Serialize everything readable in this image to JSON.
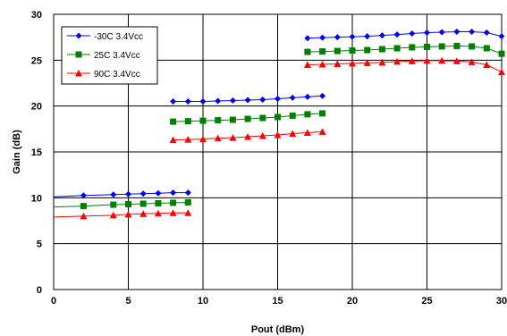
{
  "chart_data": {
    "type": "line",
    "xlabel": "Pout (dBm)",
    "ylabel": "Gain (dB)",
    "xlim": [
      0,
      30
    ],
    "ylim": [
      0,
      30
    ],
    "xticks": [
      "0",
      "5",
      "10",
      "15",
      "20",
      "25",
      "30"
    ],
    "yticks": [
      "0",
      "5",
      "10",
      "15",
      "20",
      "25",
      "30"
    ],
    "grid": true,
    "legend_position": "top-left",
    "series": [
      {
        "name": "-30C 3.4Vcc",
        "color": "#0000ff",
        "marker": "diamond",
        "segments": [
          [
            [
              0,
              10.1
            ],
            [
              2,
              10.25
            ],
            [
              4,
              10.35
            ],
            [
              5,
              10.4
            ],
            [
              6,
              10.45
            ],
            [
              7,
              10.5
            ],
            [
              8,
              10.55
            ],
            [
              9,
              10.55
            ]
          ],
          [
            [
              8,
              20.5
            ],
            [
              9,
              20.5
            ],
            [
              10,
              20.5
            ],
            [
              11,
              20.55
            ],
            [
              12,
              20.6
            ],
            [
              13,
              20.65
            ],
            [
              14,
              20.7
            ],
            [
              15,
              20.8
            ],
            [
              16,
              20.9
            ],
            [
              17,
              21.0
            ],
            [
              18,
              21.1
            ]
          ],
          [
            [
              17,
              27.4
            ],
            [
              18,
              27.45
            ],
            [
              19,
              27.5
            ],
            [
              20,
              27.55
            ],
            [
              21,
              27.6
            ],
            [
              22,
              27.7
            ],
            [
              23,
              27.8
            ],
            [
              24,
              27.9
            ],
            [
              25,
              28.0
            ],
            [
              26,
              28.05
            ],
            [
              27,
              28.1
            ],
            [
              28,
              28.1
            ],
            [
              29,
              28.0
            ],
            [
              30,
              27.6
            ]
          ]
        ]
      },
      {
        "name": "25C 3.4Vcc",
        "color": "#008000",
        "marker": "square",
        "segments": [
          [
            [
              0,
              9.0
            ],
            [
              2,
              9.1
            ],
            [
              4,
              9.25
            ],
            [
              5,
              9.3
            ],
            [
              6,
              9.35
            ],
            [
              7,
              9.4
            ],
            [
              8,
              9.45
            ],
            [
              9,
              9.5
            ]
          ],
          [
            [
              8,
              18.3
            ],
            [
              9,
              18.35
            ],
            [
              10,
              18.4
            ],
            [
              11,
              18.45
            ],
            [
              12,
              18.5
            ],
            [
              13,
              18.6
            ],
            [
              14,
              18.7
            ],
            [
              15,
              18.8
            ],
            [
              16,
              18.95
            ],
            [
              17,
              19.1
            ],
            [
              18,
              19.2
            ]
          ],
          [
            [
              17,
              25.9
            ],
            [
              18,
              25.95
            ],
            [
              19,
              26.0
            ],
            [
              20,
              26.05
            ],
            [
              21,
              26.1
            ],
            [
              22,
              26.2
            ],
            [
              23,
              26.3
            ],
            [
              24,
              26.4
            ],
            [
              25,
              26.45
            ],
            [
              26,
              26.5
            ],
            [
              27,
              26.55
            ],
            [
              28,
              26.5
            ],
            [
              29,
              26.3
            ],
            [
              30,
              25.7
            ]
          ]
        ]
      },
      {
        "name": "90C 3.4Vcc",
        "color": "#ff0000",
        "marker": "triangle",
        "segments": [
          [
            [
              0,
              7.9
            ],
            [
              2,
              8.0
            ],
            [
              4,
              8.1
            ],
            [
              5,
              8.2
            ],
            [
              6,
              8.25
            ],
            [
              7,
              8.3
            ],
            [
              8,
              8.35
            ],
            [
              9,
              8.35
            ]
          ],
          [
            [
              8,
              16.3
            ],
            [
              9,
              16.35
            ],
            [
              10,
              16.4
            ],
            [
              11,
              16.5
            ],
            [
              12,
              16.55
            ],
            [
              13,
              16.65
            ],
            [
              14,
              16.75
            ],
            [
              15,
              16.85
            ],
            [
              16,
              17.0
            ],
            [
              17,
              17.1
            ],
            [
              18,
              17.2
            ]
          ],
          [
            [
              17,
              24.5
            ],
            [
              18,
              24.55
            ],
            [
              19,
              24.6
            ],
            [
              20,
              24.65
            ],
            [
              21,
              24.7
            ],
            [
              22,
              24.75
            ],
            [
              23,
              24.85
            ],
            [
              24,
              24.9
            ],
            [
              25,
              24.95
            ],
            [
              26,
              24.95
            ],
            [
              27,
              24.9
            ],
            [
              28,
              24.8
            ],
            [
              29,
              24.5
            ],
            [
              30,
              23.7
            ]
          ]
        ]
      }
    ]
  }
}
